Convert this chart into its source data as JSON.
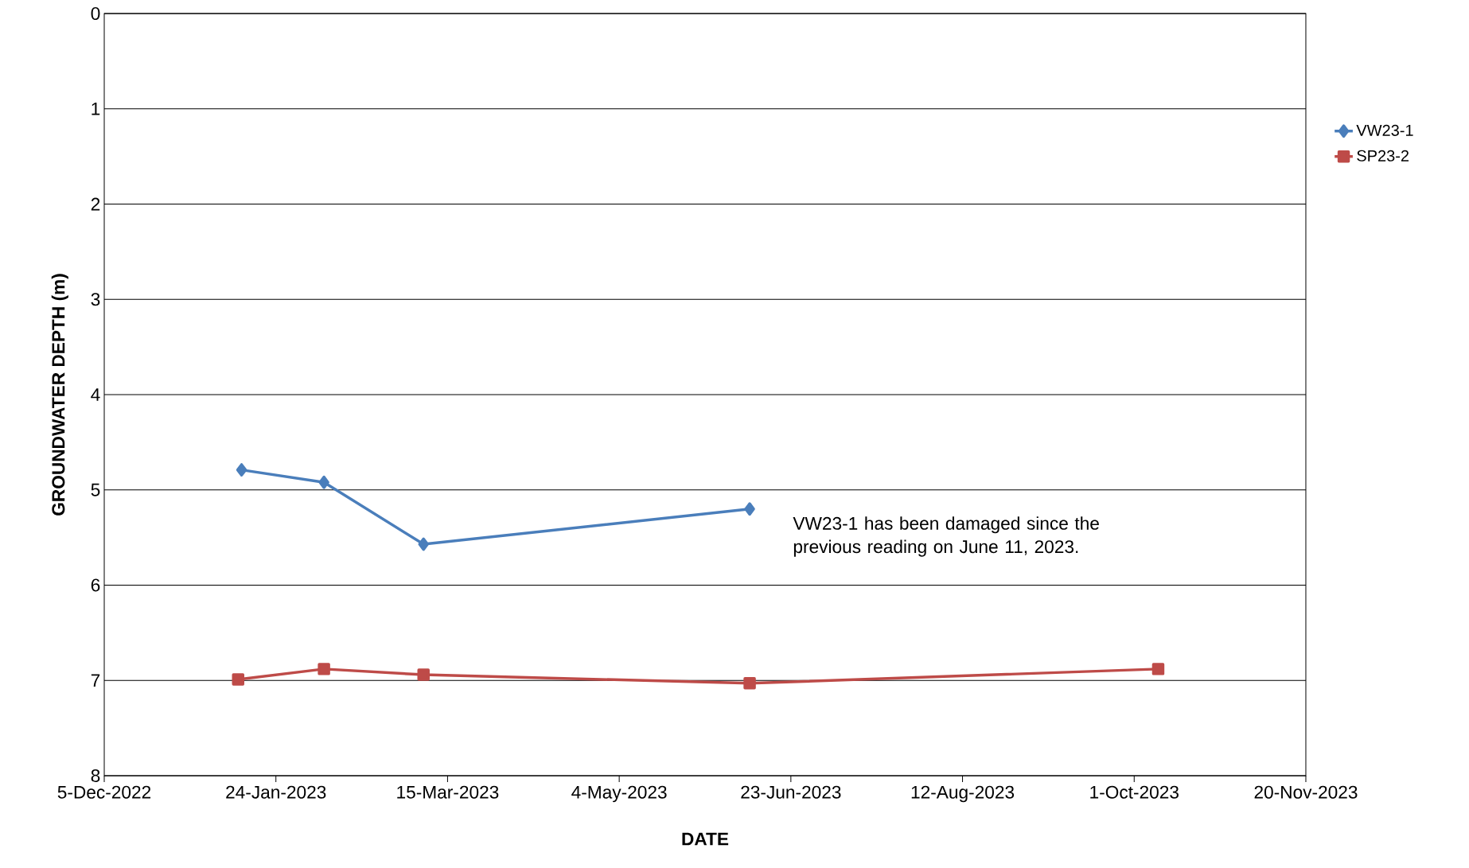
{
  "chart_data": {
    "type": "line",
    "xlabel": "DATE",
    "ylabel": "GROUNDWATER DEPTH (m)",
    "xlim": [
      "2022-12-05",
      "2023-11-20"
    ],
    "xticks": [
      {
        "value": "2022-12-05",
        "label": "5-Dec-2022"
      },
      {
        "value": "2023-01-24",
        "label": "24-Jan-2023"
      },
      {
        "value": "2023-03-15",
        "label": "15-Mar-2023"
      },
      {
        "value": "2023-05-04",
        "label": "4-May-2023"
      },
      {
        "value": "2023-06-23",
        "label": "23-Jun-2023"
      },
      {
        "value": "2023-08-12",
        "label": "12-Aug-2023"
      },
      {
        "value": "2023-10-01",
        "label": "1-Oct-2023"
      },
      {
        "value": "2023-11-20",
        "label": "20-Nov-2023"
      }
    ],
    "ylim": [
      8,
      0
    ],
    "yticks": [
      0,
      1,
      2,
      3,
      4,
      5,
      6,
      7,
      8
    ],
    "grid": "y",
    "legend": "right",
    "series": [
      {
        "name": "VW23-1",
        "color": "#4a7ebb",
        "marker": "diamond",
        "x": [
          "2023-01-14",
          "2023-02-07",
          "2023-03-08",
          "2023-06-11"
        ],
        "values": [
          4.79,
          4.92,
          5.57,
          5.2
        ]
      },
      {
        "name": "SP23-2",
        "color": "#be4b48",
        "marker": "square",
        "x": [
          "2023-01-13",
          "2023-02-07",
          "2023-03-08",
          "2023-06-11",
          "2023-10-08"
        ],
        "values": [
          6.99,
          6.88,
          6.94,
          7.03,
          6.88
        ]
      }
    ],
    "annotations": [
      "VW23-1 has been damaged since the previous reading on June 11, 2023."
    ]
  }
}
